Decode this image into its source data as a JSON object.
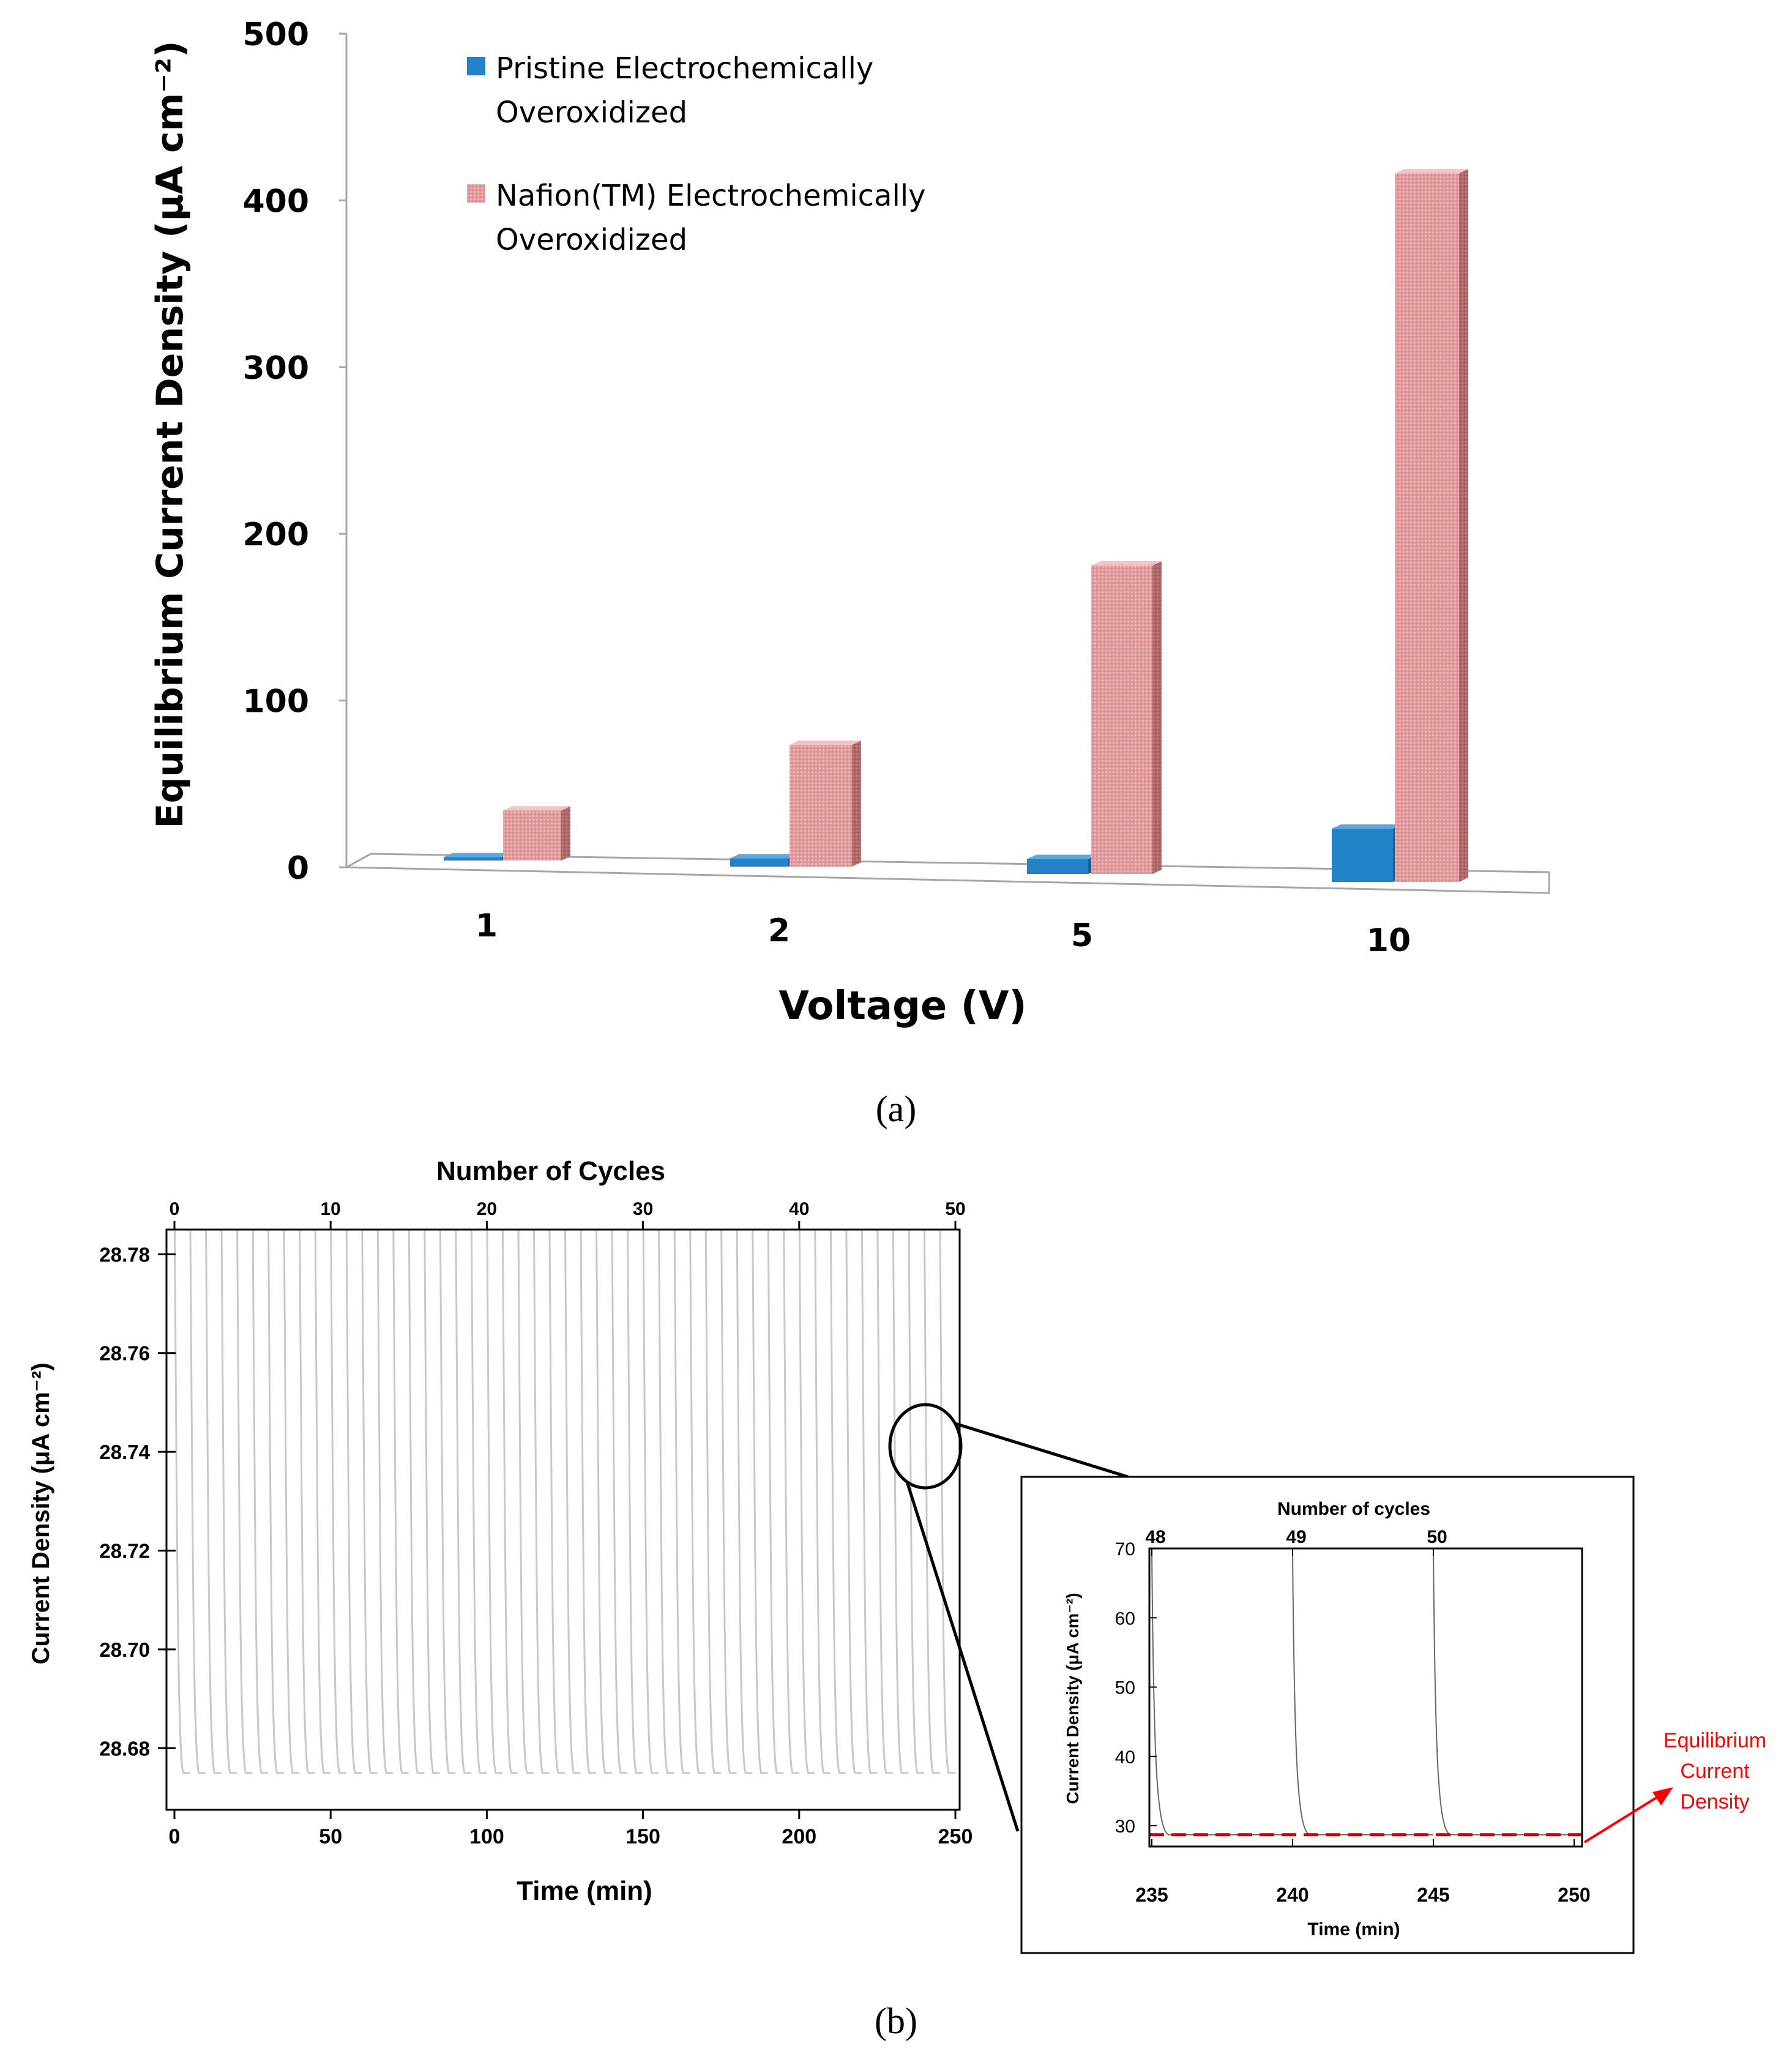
{
  "chart_data": [
    {
      "type": "bar",
      "subtitle": "(a)",
      "xlabel": "Voltage (V)",
      "ylabel": "Equilibrium Current Density (μA cm⁻²)",
      "categories": [
        "1",
        "2",
        "5",
        "10"
      ],
      "ylim": [
        0,
        500
      ],
      "yticks": [
        "0",
        "100",
        "200",
        "300",
        "400",
        "500"
      ],
      "legend_position": "top-left",
      "series": [
        {
          "name": "Pristine Electrochemically Overoxidized",
          "legend_lines": [
            "Pristine Electrochemically",
            "Overoxidized"
          ],
          "color": "#2382c8",
          "values": [
            2,
            5,
            9,
            32
          ]
        },
        {
          "name": "Nafion(TM) Electrochemically Overoxidized",
          "legend_lines": [
            "Nafion(TM) Electrochemically",
            "Overoxidized"
          ],
          "color": "#e3a0a2",
          "values": [
            30,
            73,
            185,
            425
          ]
        }
      ]
    },
    {
      "type": "line",
      "subtitle": "(b)",
      "xlabel": "Time (min)",
      "x2label": "Number of Cycles",
      "ylabel": "Current Density (μA cm⁻²)",
      "xlim": [
        0,
        250
      ],
      "ylim": [
        28.67,
        28.785
      ],
      "xticks": [
        "0",
        "50",
        "100",
        "150",
        "200",
        "250"
      ],
      "x2ticks": [
        "0",
        "10",
        "20",
        "30",
        "40",
        "50"
      ],
      "yticks": [
        "28.68",
        "28.70",
        "28.72",
        "28.74",
        "28.76",
        "28.78"
      ],
      "baseline": 28.675,
      "cycles": 50,
      "cycle_minutes": 5,
      "line_color": "#c8c8c8"
    },
    {
      "type": "line",
      "inset": true,
      "xlabel": "Time (min)",
      "x2label": "Number of cycles",
      "ylabel": "Current Density (μA cm⁻²)",
      "xlim": [
        235,
        250
      ],
      "ylim": [
        27,
        70
      ],
      "xticks": [
        "235",
        "240",
        "245",
        "250"
      ],
      "x2ticks": [
        "48",
        "49",
        "50"
      ],
      "x2tick_times": [
        235,
        240,
        245
      ],
      "yticks": [
        "30",
        "40",
        "50",
        "60",
        "70"
      ],
      "baseline": 28.7,
      "line_color": "#666666",
      "equilibrium_color": "#cc0000",
      "annotation": [
        "Equilibrium",
        "Current",
        "Density"
      ],
      "annotation_color": "#ff0000"
    }
  ]
}
